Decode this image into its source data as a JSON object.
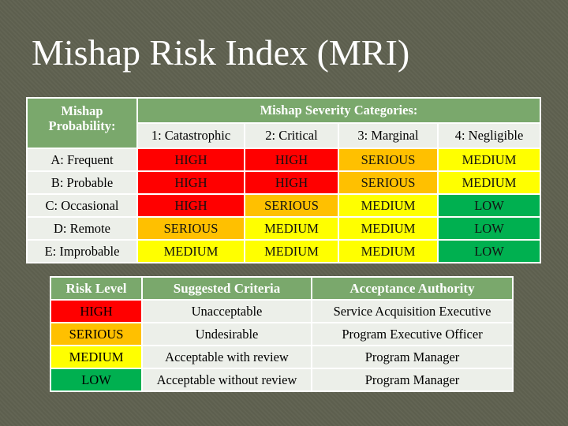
{
  "title": "Mishap Risk Index (MRI)",
  "matrix": {
    "probability_header": "Mishap Probability:",
    "severity_header": "Mishap Severity Categories:",
    "severity_categories": [
      "1: Catastrophic",
      "2: Critical",
      "3: Marginal",
      "4: Negligible"
    ],
    "rows": [
      {
        "label": "A: Frequent",
        "cells": [
          "HIGH",
          "HIGH",
          "SERIOUS",
          "MEDIUM"
        ]
      },
      {
        "label": "B: Probable",
        "cells": [
          "HIGH",
          "HIGH",
          "SERIOUS",
          "MEDIUM"
        ]
      },
      {
        "label": "C: Occasional",
        "cells": [
          "HIGH",
          "SERIOUS",
          "MEDIUM",
          "LOW"
        ]
      },
      {
        "label": "D: Remote",
        "cells": [
          "SERIOUS",
          "MEDIUM",
          "MEDIUM",
          "LOW"
        ]
      },
      {
        "label": "E: Improbable",
        "cells": [
          "MEDIUM",
          "MEDIUM",
          "MEDIUM",
          "LOW"
        ]
      }
    ]
  },
  "criteria": {
    "headers": [
      "Risk Level",
      "Suggested Criteria",
      "Acceptance Authority"
    ],
    "rows": [
      {
        "level": "HIGH",
        "criteria": "Unacceptable",
        "authority": "Service Acquisition Executive"
      },
      {
        "level": "SERIOUS",
        "criteria": "Undesirable",
        "authority": "Program Executive Officer"
      },
      {
        "level": "MEDIUM",
        "criteria": "Acceptable with review",
        "authority": "Program Manager"
      },
      {
        "level": "LOW",
        "criteria": "Acceptable without review",
        "authority": "Program Manager"
      }
    ]
  },
  "colors": {
    "HIGH": "#ff0000",
    "SERIOUS": "#ffc000",
    "MEDIUM": "#ffff00",
    "LOW": "#00b050",
    "header_green": "#7aa86c",
    "background": "#5f6150"
  }
}
